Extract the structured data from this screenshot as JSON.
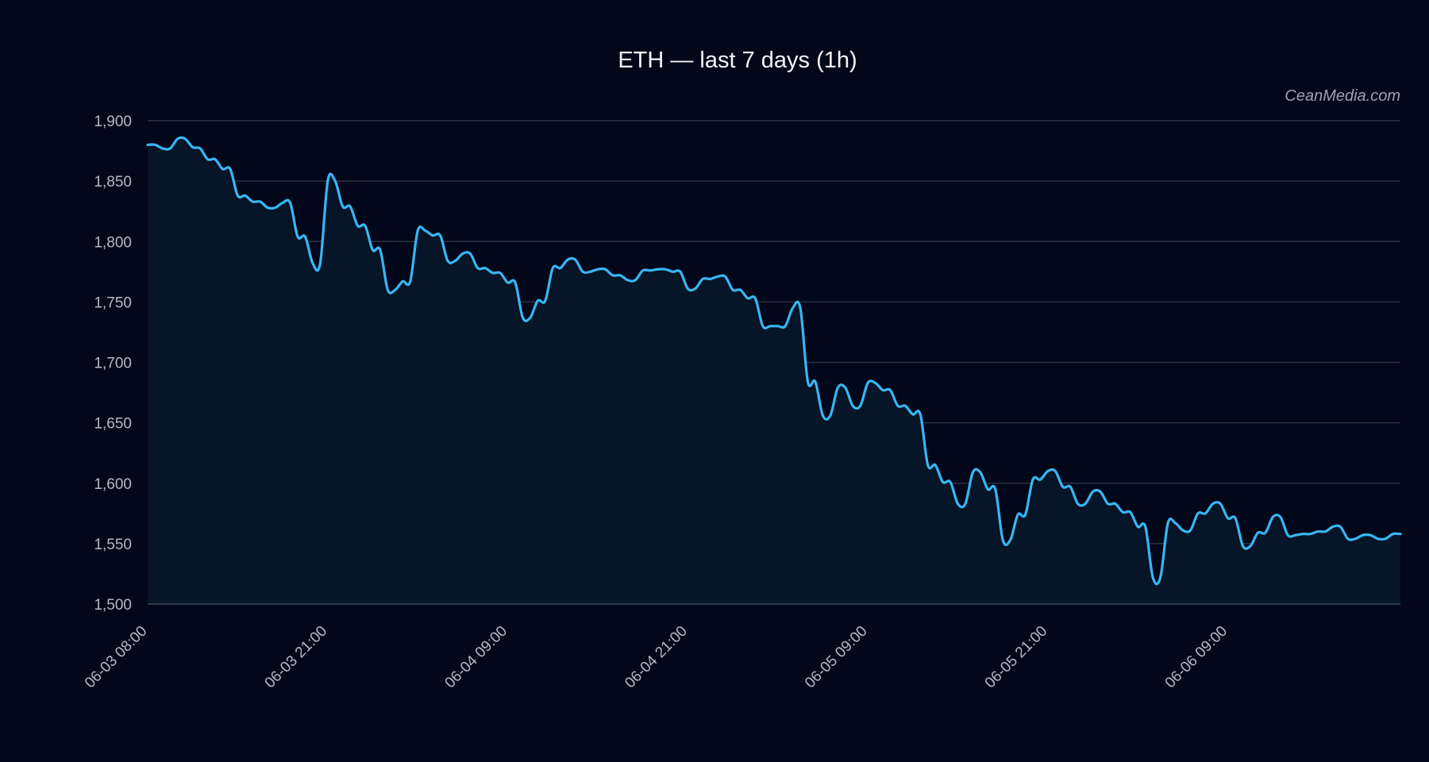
{
  "chart_data": {
    "type": "area",
    "title": "ETH — last 7 days (1h)",
    "watermark": "CeanMedia.com",
    "x_start": "06-03 08:00",
    "x_interval": "1h",
    "ylim": [
      1500,
      1900
    ],
    "yticks": [
      1500,
      1550,
      1600,
      1650,
      1700,
      1750,
      1800,
      1850,
      1900
    ],
    "ytick_labels": [
      "1,500",
      "1,550",
      "1,600",
      "1,650",
      "1,700",
      "1,750",
      "1,800",
      "1,850",
      "1,900"
    ],
    "xticks": [
      "06-03 08:00",
      "06-03 21:00",
      "06-04 09:00",
      "06-04 21:00",
      "06-05 09:00",
      "06-05 21:00",
      "06-06 09:00"
    ],
    "grid": true,
    "colors": {
      "background": "#02071a",
      "line": "#38b6f4",
      "fill": "#061527",
      "grid": "#2a3342",
      "text": "#b3b9c5"
    },
    "series": [
      {
        "values": [
          1880,
          1880,
          1877,
          1877,
          1885,
          1885,
          1878,
          1877,
          1868,
          1868,
          1860,
          1860,
          1838,
          1838,
          1833,
          1833,
          1828,
          1828,
          1832,
          1832,
          1804,
          1804,
          1782,
          1782,
          1850,
          1850,
          1829,
          1829,
          1813,
          1813,
          1793,
          1793,
          1760,
          1760,
          1767,
          1767,
          1809,
          1809,
          1805,
          1805,
          1784,
          1784,
          1790,
          1790,
          1778,
          1778,
          1774,
          1774,
          1766,
          1766,
          1737,
          1737,
          1751,
          1751,
          1778,
          1778,
          1785,
          1785,
          1775,
          1775,
          1777,
          1777,
          1772,
          1772,
          1768,
          1768,
          1776,
          1776,
          1777,
          1777,
          1775,
          1775,
          1761,
          1761,
          1769,
          1769,
          1771,
          1771,
          1760,
          1760,
          1753,
          1753,
          1730,
          1730,
          1730,
          1730,
          1745,
          1745,
          1684,
          1684,
          1656,
          1656,
          1679,
          1679,
          1664,
          1664,
          1683,
          1683,
          1677,
          1677,
          1664,
          1664,
          1657,
          1657,
          1615,
          1615,
          1601,
          1601,
          1583,
          1583,
          1609,
          1609,
          1595,
          1595,
          1553,
          1553,
          1574,
          1574,
          1603,
          1603,
          1610,
          1610,
          1597,
          1597,
          1583,
          1583,
          1593,
          1593,
          1583,
          1583,
          1576,
          1576,
          1564,
          1564,
          1522,
          1522,
          1567,
          1567,
          1561,
          1561,
          1575,
          1575,
          1583,
          1583,
          1571,
          1571,
          1548,
          1548,
          1559,
          1559,
          1572,
          1572,
          1557,
          1557,
          1558,
          1558,
          1560,
          1560,
          1564,
          1564,
          1554,
          1554,
          1557,
          1557,
          1554,
          1554,
          1558,
          1558
        ]
      }
    ]
  }
}
